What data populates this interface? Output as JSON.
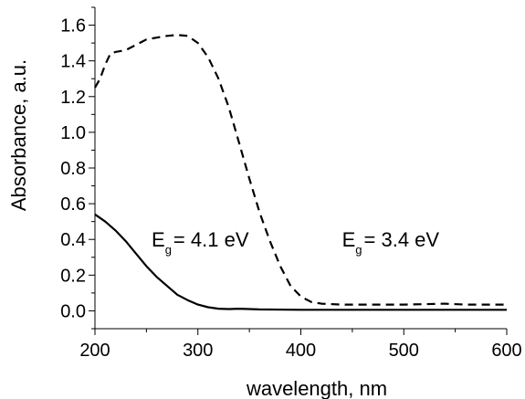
{
  "chart_data": {
    "type": "line",
    "xlabel": "wavelength, nm",
    "ylabel": "Absorbance, a.u.",
    "xlim": [
      200,
      600
    ],
    "ylim": [
      -0.1,
      1.7
    ],
    "xticks": [
      "200",
      "300",
      "400",
      "500",
      "600"
    ],
    "yticks": [
      "0.0",
      "0.2",
      "0.4",
      "0.6",
      "0.8",
      "1.0",
      "1.2",
      "1.4",
      "1.6"
    ],
    "grid": false,
    "series": [
      {
        "style": "solid",
        "x": [
          200,
          210,
          220,
          230,
          240,
          250,
          260,
          270,
          280,
          290,
          300,
          310,
          320,
          330,
          340,
          360,
          400,
          450,
          500,
          550,
          600
        ],
        "y": [
          0.54,
          0.5,
          0.45,
          0.39,
          0.32,
          0.25,
          0.19,
          0.14,
          0.09,
          0.06,
          0.035,
          0.02,
          0.012,
          0.01,
          0.012,
          0.008,
          0.006,
          0.006,
          0.006,
          0.006,
          0.006
        ]
      },
      {
        "style": "dashed",
        "x": [
          200,
          205,
          210,
          215,
          220,
          230,
          240,
          250,
          260,
          270,
          280,
          290,
          300,
          310,
          320,
          330,
          340,
          350,
          360,
          370,
          380,
          390,
          400,
          410,
          420,
          440,
          460,
          500,
          540,
          560,
          600
        ],
        "y": [
          1.25,
          1.3,
          1.38,
          1.44,
          1.45,
          1.46,
          1.49,
          1.52,
          1.53,
          1.54,
          1.545,
          1.54,
          1.5,
          1.42,
          1.3,
          1.14,
          0.94,
          0.74,
          0.55,
          0.39,
          0.25,
          0.14,
          0.08,
          0.05,
          0.04,
          0.035,
          0.035,
          0.035,
          0.04,
          0.035,
          0.035
        ]
      }
    ],
    "annotations": [
      {
        "main": "E",
        "sub": "g",
        "rest": "= 4.1 eV",
        "x": 255,
        "y": 0.36
      },
      {
        "main": "E",
        "sub": "g",
        "rest": "= 3.4 eV",
        "x": 440,
        "y": 0.36
      }
    ]
  }
}
